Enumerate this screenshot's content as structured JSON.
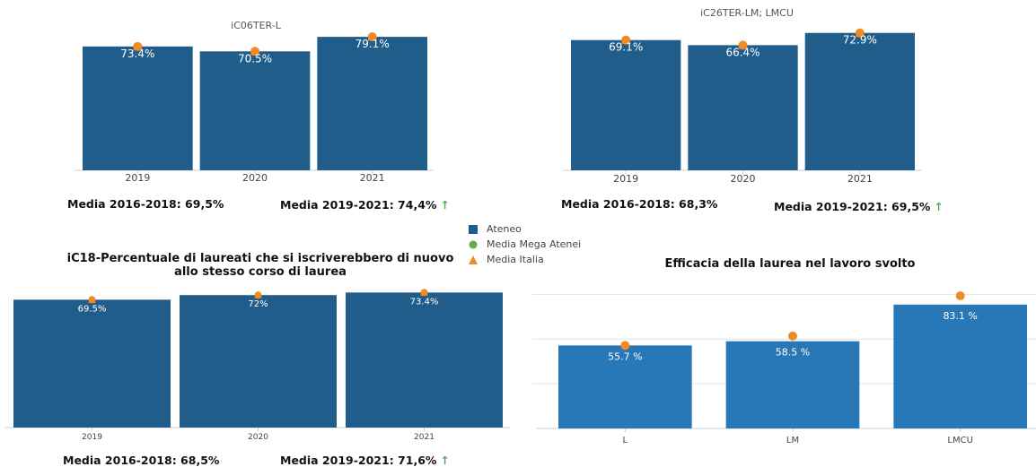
{
  "legend": [
    {
      "label": "Ateneo",
      "symbol": "square",
      "color": "#215d8b"
    },
    {
      "label": "Media Mega Atenei",
      "symbol": "circle",
      "color": "#6aa84f"
    },
    {
      "label": "Media Italia",
      "symbol": "triangle",
      "color": "#f08a24"
    }
  ],
  "chart_data": [
    {
      "type": "bar",
      "title": "iC06TER-L",
      "categories": [
        "2019",
        "2020",
        "2021"
      ],
      "series": [
        {
          "name": "Ateneo",
          "values": [
            73.4,
            70.5,
            79.1
          ]
        },
        {
          "name": "Media Mega Atenei",
          "values": [
            73.4,
            70.5,
            79.1
          ]
        },
        {
          "name": "Media Italia",
          "values": [
            73.4,
            70.5,
            79.1
          ]
        }
      ],
      "data_labels": [
        "73.4%",
        "70.5%",
        "79.1%"
      ],
      "ylim": [
        0,
        85
      ],
      "bar_color": "#215d8b",
      "footer": {
        "media_past": "Media 2016-2018: 69,5%",
        "media_recent": "Media 2019-2021: 74,4%",
        "trend": "↑"
      }
    },
    {
      "type": "bar",
      "title": "iC26TER-LM; LMCU",
      "categories": [
        "2019",
        "2020",
        "2021"
      ],
      "series": [
        {
          "name": "Ateneo",
          "values": [
            69.1,
            66.4,
            72.9
          ]
        },
        {
          "name": "Media Mega Atenei",
          "values": [
            69.1,
            66.4,
            72.9
          ]
        },
        {
          "name": "Media Italia",
          "values": [
            69.1,
            66.4,
            72.9
          ]
        }
      ],
      "data_labels": [
        "69.1%",
        "66.4%",
        "72.9%"
      ],
      "ylim": [
        0,
        78
      ],
      "bar_color": "#215d8b",
      "footer": {
        "media_past": "Media 2016-2018: 68,3%",
        "media_recent": "Media 2019-2021: 69,5%",
        "trend": "↑"
      }
    },
    {
      "type": "bar",
      "title": "iC18-Percentuale di laureati che si iscriverebbero di nuovo allo stesso corso di laurea",
      "categories": [
        "2019",
        "2020",
        "2021"
      ],
      "series": [
        {
          "name": "Ateneo",
          "values": [
            69.5,
            72,
            73.4
          ]
        },
        {
          "name": "Media Mega Atenei",
          "values": [
            69.5,
            72,
            73.4
          ]
        },
        {
          "name": "Media Italia",
          "values": [
            69.5,
            72,
            73.4
          ]
        }
      ],
      "data_labels": [
        "69.5%",
        "72%",
        "73.4%"
      ],
      "ylim": [
        0,
        76
      ],
      "bar_color": "#215d8b",
      "footer": {
        "media_past": "Media 2016-2018: 68,5%",
        "media_recent": "Media 2019-2021: 71,6%",
        "trend": "↑"
      }
    },
    {
      "type": "bar",
      "title": "Efficacia della laurea nel lavoro svolto",
      "categories": [
        "L",
        "LM",
        "LMCU"
      ],
      "series": [
        {
          "name": "Ateneo",
          "values": [
            55.7,
            58.5,
            83.1
          ]
        },
        {
          "name": "Media Italia",
          "values": [
            55.7,
            62.0,
            89.0
          ]
        }
      ],
      "data_labels": [
        "55.7 %",
        "58.5 %",
        "83.1 %"
      ],
      "ylim": [
        0,
        95
      ],
      "bar_color": "#2878b8",
      "grid": true
    }
  ]
}
